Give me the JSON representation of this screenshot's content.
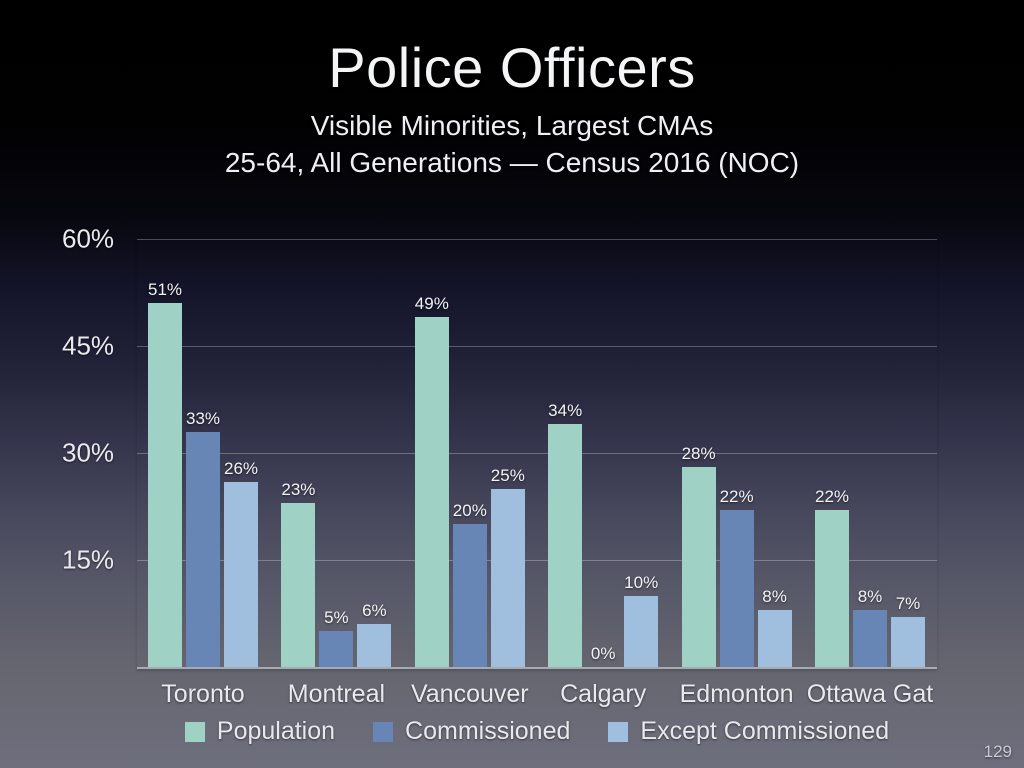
{
  "chart_data": {
    "type": "bar",
    "title": "Police Officers",
    "subtitle1": "Visible Minorities, Largest CMAs",
    "subtitle2": "25-64, All Generations — Census 2016 (NOC)",
    "categories": [
      "Toronto",
      "Montreal",
      "Vancouver",
      "Calgary",
      "Edmonton",
      "Ottawa Gat"
    ],
    "series": [
      {
        "name": "Population",
        "color": "#9fd1c4",
        "values": [
          51,
          23,
          49,
          34,
          28,
          22
        ]
      },
      {
        "name": "Commissioned",
        "color": "#6886b5",
        "values": [
          33,
          5,
          20,
          0,
          22,
          8
        ]
      },
      {
        "name": "Except Commissioned",
        "color": "#a0bedd",
        "values": [
          26,
          6,
          25,
          10,
          8,
          7
        ]
      }
    ],
    "value_label_suffix": "%",
    "xlabel": "",
    "ylabel": "",
    "ylim": [
      0,
      60
    ],
    "y_ticks": [
      {
        "value": 60,
        "label": "60%"
      },
      {
        "value": 45,
        "label": "45%"
      },
      {
        "value": 30,
        "label": "30%"
      },
      {
        "value": 15,
        "label": "15%"
      }
    ],
    "grid": true,
    "legend_position": "bottom"
  },
  "page": {
    "number": "129"
  }
}
